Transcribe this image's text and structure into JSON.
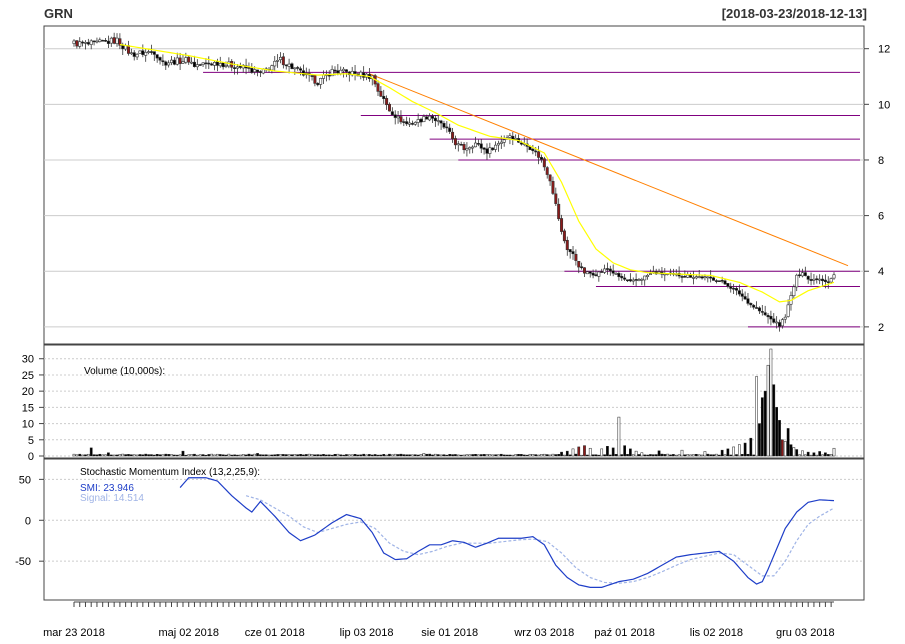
{
  "header": {
    "symbol": "GRN",
    "range": "[2018-03-23/2018-12-13]"
  },
  "colors": {
    "up": "#ffffff",
    "down": "#000000",
    "down_hot": "#8b1a1a",
    "ema": "#ffff00",
    "trend": "#ff7f00",
    "level": "#800080",
    "smi": "#1e3ec8",
    "signal": "#a0b4e6",
    "volume_label": "#000000",
    "grid": "#cccccc"
  },
  "chart_data": [
    {
      "type": "candlestick",
      "title": "",
      "x_tick_labels": [
        "mar 23 2018",
        "maj 02 2018",
        "cze 01 2018",
        "lip 03 2018",
        "sie 01 2018",
        "wrz 03 2018",
        "paź 01 2018",
        "lis 02 2018",
        "gru 03 2018"
      ],
      "x_tick_days": [
        0,
        40,
        70,
        102,
        131,
        164,
        192,
        224,
        255
      ],
      "n_days": 266,
      "ylim": [
        1.6,
        12.6
      ],
      "y_ticks": [
        2,
        4,
        6,
        8,
        10,
        12
      ],
      "grid": true,
      "ohlc_anchors": [
        [
          0,
          12.2
        ],
        [
          5,
          12.15
        ],
        [
          15,
          12.3
        ],
        [
          18,
          12.0
        ],
        [
          20,
          11.8
        ],
        [
          28,
          11.9
        ],
        [
          31,
          11.5
        ],
        [
          40,
          11.6
        ],
        [
          42,
          11.4
        ],
        [
          50,
          11.5
        ],
        [
          60,
          11.3
        ],
        [
          65,
          11.1
        ],
        [
          72,
          11.6
        ],
        [
          78,
          11.2
        ],
        [
          85,
          10.8
        ],
        [
          90,
          11.2
        ],
        [
          95,
          11.15
        ],
        [
          104,
          11.0
        ],
        [
          106,
          10.5
        ],
        [
          110,
          9.8
        ],
        [
          113,
          9.5
        ],
        [
          116,
          9.3
        ],
        [
          120,
          9.4
        ],
        [
          124,
          9.6
        ],
        [
          130,
          9.1
        ],
        [
          133,
          8.6
        ],
        [
          136,
          8.4
        ],
        [
          140,
          8.6
        ],
        [
          144,
          8.3
        ],
        [
          148,
          8.6
        ],
        [
          152,
          8.9
        ],
        [
          156,
          8.6
        ],
        [
          160,
          8.4
        ],
        [
          163,
          8.0
        ],
        [
          166,
          7.3
        ],
        [
          168,
          6.4
        ],
        [
          170,
          5.4
        ],
        [
          172,
          4.8
        ],
        [
          174,
          4.6
        ],
        [
          176,
          4.2
        ],
        [
          178,
          3.95
        ],
        [
          182,
          3.9
        ],
        [
          186,
          4.1
        ],
        [
          190,
          3.8
        ],
        [
          194,
          3.6
        ],
        [
          198,
          3.75
        ],
        [
          202,
          3.95
        ],
        [
          206,
          3.9
        ],
        [
          212,
          3.85
        ],
        [
          218,
          3.8
        ],
        [
          224,
          3.7
        ],
        [
          228,
          3.5
        ],
        [
          232,
          3.2
        ],
        [
          236,
          2.8
        ],
        [
          240,
          2.5
        ],
        [
          244,
          2.2
        ],
        [
          246,
          2.05
        ],
        [
          248,
          2.4
        ],
        [
          250,
          3.1
        ],
        [
          252,
          3.8
        ],
        [
          254,
          4.0
        ],
        [
          256,
          3.7
        ],
        [
          260,
          3.75
        ],
        [
          263,
          3.6
        ],
        [
          265,
          3.85
        ]
      ],
      "ema_anchors": [
        [
          16,
          12.15
        ],
        [
          28,
          11.95
        ],
        [
          40,
          11.75
        ],
        [
          55,
          11.45
        ],
        [
          70,
          11.2
        ],
        [
          85,
          11.05
        ],
        [
          95,
          11.1
        ],
        [
          103,
          11.0
        ],
        [
          110,
          10.6
        ],
        [
          118,
          10.1
        ],
        [
          126,
          9.7
        ],
        [
          134,
          9.25
        ],
        [
          145,
          8.85
        ],
        [
          155,
          8.7
        ],
        [
          164,
          8.25
        ],
        [
          170,
          7.2
        ],
        [
          176,
          5.8
        ],
        [
          182,
          4.8
        ],
        [
          188,
          4.3
        ],
        [
          194,
          4.05
        ],
        [
          200,
          3.95
        ],
        [
          210,
          3.9
        ],
        [
          222,
          3.85
        ],
        [
          232,
          3.6
        ],
        [
          240,
          3.25
        ],
        [
          246,
          2.9
        ],
        [
          250,
          2.95
        ],
        [
          256,
          3.3
        ],
        [
          265,
          3.6
        ]
      ],
      "trendline": {
        "from": [
          103,
          11.1
        ],
        "to": [
          265,
          4.2
        ]
      },
      "levels": [
        {
          "y": 11.15,
          "from_day": 45,
          "to_day": 266
        },
        {
          "y": 9.6,
          "from_day": 100,
          "to_day": 266
        },
        {
          "y": 8.75,
          "from_day": 124,
          "to_day": 266
        },
        {
          "y": 8.0,
          "from_day": 134,
          "to_day": 266
        },
        {
          "y": 4.0,
          "from_day": 171,
          "to_day": 266
        },
        {
          "y": 3.45,
          "from_day": 182,
          "to_day": 266
        },
        {
          "y": 2.0,
          "from_day": 235,
          "to_day": 266
        }
      ]
    },
    {
      "type": "bar",
      "title": "Volume (10,000s):",
      "ylim": [
        0,
        33
      ],
      "y_ticks": [
        0,
        5,
        10,
        15,
        20,
        25,
        30
      ],
      "grid": true,
      "spikes": [
        [
          6,
          2.5
        ],
        [
          12,
          1.0
        ],
        [
          38,
          1.5
        ],
        [
          64,
          0.8
        ],
        [
          122,
          0.8
        ],
        [
          170,
          1.2
        ],
        [
          172,
          1.5
        ],
        [
          174,
          2.2
        ],
        [
          176,
          2.8
        ],
        [
          178,
          3.2
        ],
        [
          180,
          2.4
        ],
        [
          184,
          2.2
        ],
        [
          186,
          3.0
        ],
        [
          188,
          2.5
        ],
        [
          190,
          12.0
        ],
        [
          192,
          3.2
        ],
        [
          194,
          2.2
        ],
        [
          196,
          1.5
        ],
        [
          198,
          1.0
        ],
        [
          204,
          1.6
        ],
        [
          212,
          1.8
        ],
        [
          220,
          1.4
        ],
        [
          226,
          1.8
        ],
        [
          228,
          2.2
        ],
        [
          230,
          2.8
        ],
        [
          232,
          3.5
        ],
        [
          234,
          4.0
        ],
        [
          236,
          5.5
        ],
        [
          238,
          24.5
        ],
        [
          239,
          10.0
        ],
        [
          240,
          18.0
        ],
        [
          241,
          20.0
        ],
        [
          242,
          28.0
        ],
        [
          243,
          33.0
        ],
        [
          244,
          22.0
        ],
        [
          245,
          15.0
        ],
        [
          246,
          11.0
        ],
        [
          247,
          5.0
        ],
        [
          248,
          4.5
        ],
        [
          249,
          8.5
        ],
        [
          250,
          3.5
        ],
        [
          251,
          2.6
        ],
        [
          252,
          2.0
        ],
        [
          254,
          1.6
        ],
        [
          256,
          1.2
        ],
        [
          258,
          1.0
        ],
        [
          260,
          1.4
        ],
        [
          262,
          1.0
        ],
        [
          265,
          2.4
        ]
      ]
    },
    {
      "type": "line",
      "title": "Stochastic Momentum Index (13,2,25,9):",
      "ylim": [
        -95,
        70
      ],
      "y_ticks": [
        -50,
        0,
        50
      ],
      "grid": true,
      "series": [
        {
          "name": "SMI",
          "last_label": "SMI: 23.946",
          "points": [
            [
              37,
              40
            ],
            [
              40,
              52
            ],
            [
              46,
              52
            ],
            [
              50,
              48
            ],
            [
              55,
              30
            ],
            [
              60,
              15
            ],
            [
              62,
              10
            ],
            [
              65,
              23
            ],
            [
              70,
              5
            ],
            [
              75,
              -15
            ],
            [
              79,
              -25
            ],
            [
              84,
              -18
            ],
            [
              90,
              -3
            ],
            [
              95,
              7
            ],
            [
              100,
              2
            ],
            [
              104,
              -15
            ],
            [
              108,
              -40
            ],
            [
              112,
              -48
            ],
            [
              116,
              -47
            ],
            [
              120,
              -38
            ],
            [
              124,
              -30
            ],
            [
              128,
              -30
            ],
            [
              132,
              -25
            ],
            [
              136,
              -27
            ],
            [
              140,
              -33
            ],
            [
              144,
              -28
            ],
            [
              148,
              -22
            ],
            [
              152,
              -22
            ],
            [
              156,
              -22
            ],
            [
              160,
              -20
            ],
            [
              164,
              -30
            ],
            [
              168,
              -55
            ],
            [
              172,
              -70
            ],
            [
              176,
              -79
            ],
            [
              180,
              -82
            ],
            [
              184,
              -82
            ],
            [
              190,
              -75
            ],
            [
              195,
              -72
            ],
            [
              200,
              -65
            ],
            [
              205,
              -55
            ],
            [
              210,
              -45
            ],
            [
              215,
              -42
            ],
            [
              220,
              -40
            ],
            [
              225,
              -38
            ],
            [
              230,
              -50
            ],
            [
              235,
              -70
            ],
            [
              238,
              -78
            ],
            [
              240,
              -75
            ],
            [
              242,
              -60
            ],
            [
              245,
              -35
            ],
            [
              248,
              -10
            ],
            [
              252,
              10
            ],
            [
              256,
              22
            ],
            [
              260,
              25
            ],
            [
              265,
              24
            ]
          ]
        },
        {
          "name": "Signal",
          "last_label": "Signal: 14.514",
          "points": [
            [
              60,
              30
            ],
            [
              65,
              25
            ],
            [
              70,
              15
            ],
            [
              75,
              5
            ],
            [
              80,
              -8
            ],
            [
              85,
              -15
            ],
            [
              90,
              -10
            ],
            [
              95,
              -5
            ],
            [
              100,
              -2
            ],
            [
              105,
              -10
            ],
            [
              110,
              -28
            ],
            [
              115,
              -38
            ],
            [
              120,
              -42
            ],
            [
              125,
              -38
            ],
            [
              130,
              -32
            ],
            [
              135,
              -28
            ],
            [
              140,
              -28
            ],
            [
              145,
              -28
            ],
            [
              150,
              -26
            ],
            [
              155,
              -24
            ],
            [
              160,
              -23
            ],
            [
              165,
              -26
            ],
            [
              170,
              -40
            ],
            [
              175,
              -58
            ],
            [
              180,
              -70
            ],
            [
              185,
              -76
            ],
            [
              190,
              -77
            ],
            [
              195,
              -75
            ],
            [
              200,
              -70
            ],
            [
              205,
              -63
            ],
            [
              210,
              -55
            ],
            [
              215,
              -48
            ],
            [
              220,
              -44
            ],
            [
              225,
              -40
            ],
            [
              230,
              -42
            ],
            [
              235,
              -55
            ],
            [
              240,
              -68
            ],
            [
              244,
              -68
            ],
            [
              248,
              -50
            ],
            [
              252,
              -25
            ],
            [
              256,
              -5
            ],
            [
              260,
              5
            ],
            [
              265,
              15
            ]
          ]
        }
      ]
    }
  ]
}
